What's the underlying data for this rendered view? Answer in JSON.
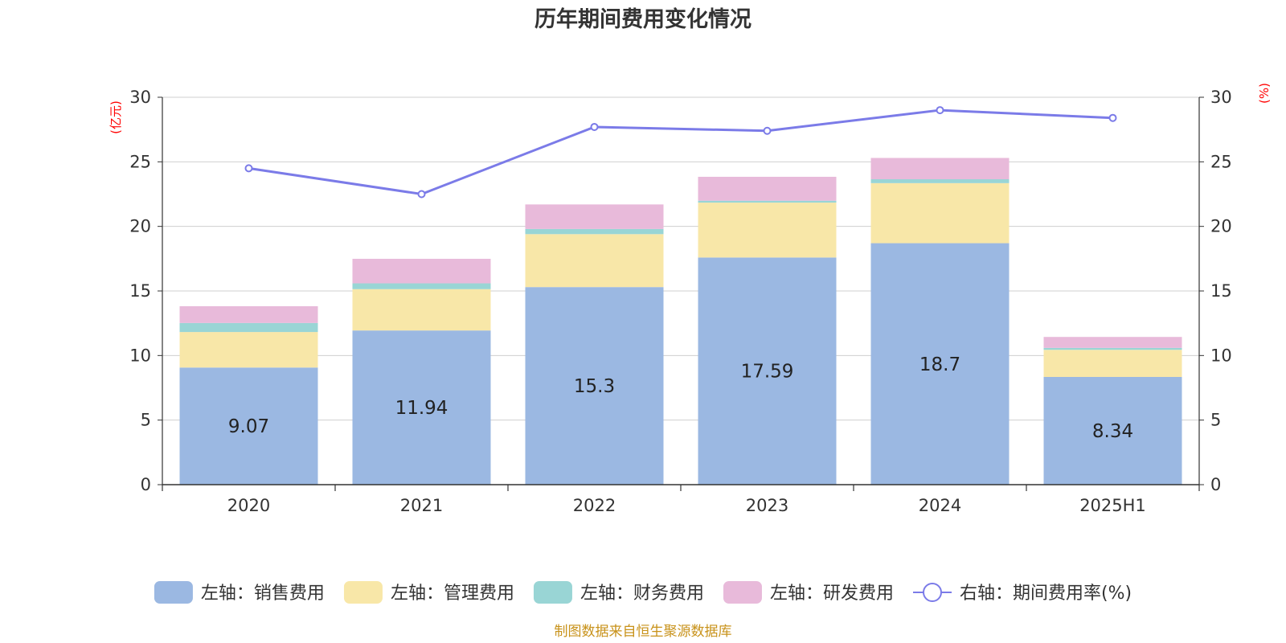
{
  "chart_data": {
    "type": "bar",
    "title": "历年期间费用变化情况",
    "categories": [
      "2020",
      "2021",
      "2022",
      "2023",
      "2024",
      "2025H1"
    ],
    "left_axis": {
      "unit": "(亿元)",
      "ylim": [
        0,
        30
      ],
      "ticks": [
        "0",
        "5",
        "10",
        "15",
        "20",
        "25",
        "30"
      ]
    },
    "right_axis": {
      "unit": "(%)",
      "ylim": [
        0,
        30
      ],
      "ticks": [
        "0",
        "5",
        "10",
        "15",
        "20",
        "25",
        "30"
      ]
    },
    "stacked": true,
    "series": [
      {
        "name": "左轴：销售费用",
        "type": "bar",
        "color": "#9bb8e2",
        "values": [
          9.07,
          11.94,
          15.3,
          17.59,
          18.7,
          8.34
        ],
        "labels": [
          "9.07",
          "11.94",
          "15.3",
          "17.59",
          "18.7",
          "8.34"
        ]
      },
      {
        "name": "左轴：管理费用",
        "type": "bar",
        "color": "#f8e7a8",
        "values": [
          2.75,
          3.2,
          4.1,
          4.25,
          4.65,
          2.1
        ]
      },
      {
        "name": "左轴：财务费用",
        "type": "bar",
        "color": "#99d5d5",
        "values": [
          0.7,
          0.45,
          0.4,
          0.15,
          0.3,
          0.15
        ]
      },
      {
        "name": "左轴：研发费用",
        "type": "bar",
        "color": "#e8bada",
        "values": [
          1.3,
          1.9,
          1.9,
          1.85,
          1.65,
          0.85
        ]
      },
      {
        "name": "右轴：期间费用率(%)",
        "type": "line",
        "color": "#7b7be8",
        "values": [
          24.5,
          22.5,
          27.7,
          27.4,
          29.0,
          28.4
        ]
      }
    ],
    "grid": true,
    "legend_position": "bottom"
  },
  "source_note": "制图数据来自恒生聚源数据库"
}
